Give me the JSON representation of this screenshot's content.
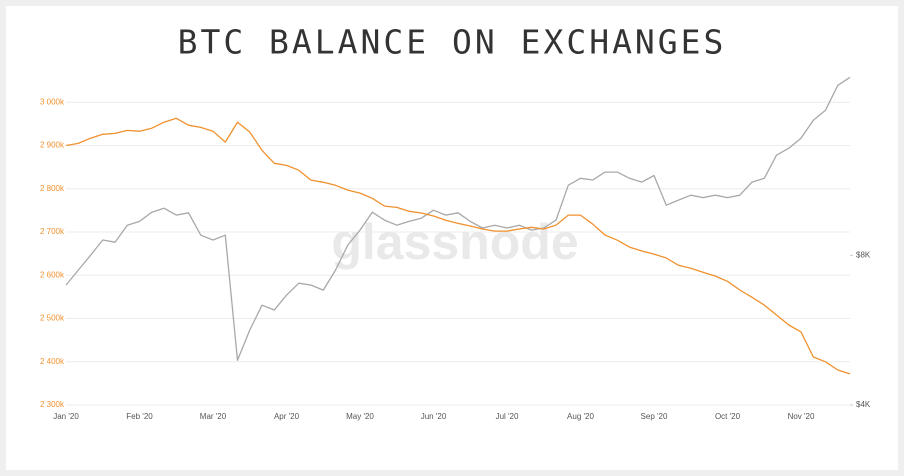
{
  "chart_data": {
    "type": "line",
    "title": "BTC BALANCE ON EXCHANGES",
    "watermark": "glassnode",
    "categories": [
      "Jan '20",
      null,
      null,
      null,
      null,
      null,
      "Feb '20",
      null,
      null,
      null,
      null,
      null,
      "Mar '20",
      null,
      null,
      null,
      null,
      null,
      "Apr '20",
      null,
      null,
      null,
      null,
      null,
      "May '20",
      null,
      null,
      null,
      null,
      null,
      "Jun '20",
      null,
      null,
      null,
      null,
      null,
      "Jul '20",
      null,
      null,
      null,
      null,
      null,
      "Aug '20",
      null,
      null,
      null,
      null,
      null,
      "Sep '20",
      null,
      null,
      null,
      null,
      null,
      "Oct '20",
      null,
      null,
      null,
      null,
      null,
      "Nov '20",
      null,
      null,
      null,
      null
    ],
    "series": [
      {
        "color": "#f0912e",
        "values": [
          2900000,
          2905000,
          2917000,
          2926000,
          2928000,
          2935000,
          2933000,
          2940000,
          2954000,
          2963000,
          2947000,
          2942000,
          2933000,
          2908000,
          2954000,
          2931000,
          2889000,
          2859000,
          2854000,
          2843000,
          2820000,
          2815000,
          2808000,
          2797000,
          2790000,
          2778000,
          2760000,
          2757000,
          2748000,
          2744000,
          2737000,
          2727000,
          2720000,
          2714000,
          2707000,
          2702000,
          2702000,
          2707000,
          2711000,
          2707000,
          2716000,
          2739000,
          2739000,
          2718000,
          2693000,
          2681000,
          2665000,
          2656000,
          2649000,
          2640000,
          2623000,
          2616000,
          2607000,
          2598000,
          2586000,
          2566000,
          2549000,
          2531000,
          2508000,
          2485000,
          2469000,
          2411000,
          2400000,
          2381000,
          2372000
        ]
      },
      {
        "color": "#a8a8a8",
        "axis": "y2",
        "values": [
          6970,
          7470,
          8000,
          8590,
          8500,
          9200,
          9360,
          9770,
          9950,
          9640,
          9740,
          8780,
          8590,
          8780,
          4920,
          5660,
          6350,
          6210,
          6650,
          7030,
          6970,
          6810,
          7470,
          8390,
          8990,
          9770,
          9420,
          9200,
          9360,
          9500,
          9860,
          9640,
          9740,
          9360,
          9080,
          9200,
          9080,
          9200,
          8990,
          9080,
          9420,
          11070,
          11430,
          11340,
          11760,
          11760,
          11430,
          11230,
          11580,
          10090,
          10330,
          10570,
          10450,
          10570,
          10450,
          10570,
          11230,
          11430,
          12720,
          13140,
          13760,
          14960,
          15670,
          17580,
          18250
        ]
      }
    ],
    "ylim": [
      2300000,
      3070000
    ],
    "yticks": [
      {
        "value": 2300000,
        "label": "2 300k"
      },
      {
        "value": 2400000,
        "label": "2 400k"
      },
      {
        "value": 2500000,
        "label": "2 500k"
      },
      {
        "value": 2600000,
        "label": "2 600k"
      },
      {
        "value": 2700000,
        "label": "2 700k"
      },
      {
        "value": 2800000,
        "label": "2 800k"
      },
      {
        "value": 2900000,
        "label": "2 900k"
      },
      {
        "value": 3000000,
        "label": "3 000k"
      }
    ],
    "y2lim": [
      4000,
      18700
    ],
    "y2ticks": [
      {
        "value": 4000,
        "label": "$4K"
      },
      {
        "value": 8000,
        "label": "$8K"
      }
    ],
    "y2log": true,
    "grid": true
  }
}
